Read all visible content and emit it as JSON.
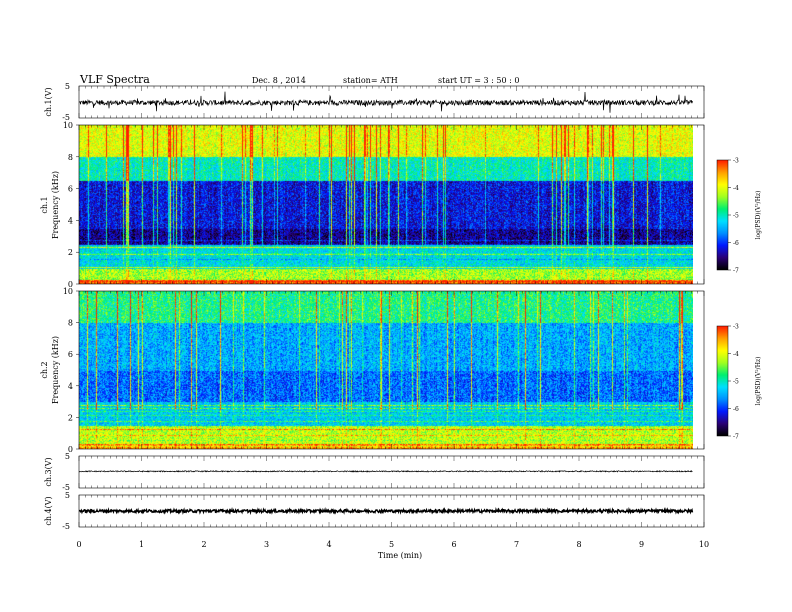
{
  "header": {
    "title": "VLF  Spectra",
    "date": "Dec. 8  , 2014",
    "station": "station= ATH",
    "start": "start  UT  =   3  : 50 : 0"
  },
  "colors": {
    "waveform": "#000000",
    "colormap": [
      "#000000",
      "#2a0078",
      "#0018ff",
      "#0090ff",
      "#00e0ff",
      "#00f070",
      "#a0ff20",
      "#ffff00",
      "#ffa000",
      "#ff2000",
      "#ffffff"
    ]
  },
  "chart_data": [
    {
      "type": "line",
      "panel": "ch1-waveform",
      "ylabel": "ch.1(V)",
      "ylim": [
        -5,
        5
      ],
      "yticks": [
        "5",
        "-5"
      ],
      "xlim": [
        0,
        10
      ],
      "x_extent": [
        0,
        9.82
      ],
      "level_v": -0.2
    },
    {
      "type": "heatmap",
      "panel": "ch1-spectrogram",
      "ylabel_top": "ch.1",
      "ylabel": "Frequency  (kHz)",
      "ylim": [
        0,
        10
      ],
      "yticks": [
        "0",
        "2",
        "4",
        "6",
        "8",
        "10"
      ],
      "xlim": [
        0,
        10
      ],
      "x_extent": [
        0,
        9.82
      ],
      "colorbar": {
        "label": "log(PSD)(V²/Hz)",
        "range": [
          -7,
          -3
        ],
        "ticks": [
          "-3",
          "-4",
          "-5",
          "-6",
          "-7"
        ]
      },
      "band_levels_logpsd": [
        {
          "f": [
            0,
            0.3
          ],
          "v": -3.2
        },
        {
          "f": [
            0.3,
            1
          ],
          "v": -4.3
        },
        {
          "f": [
            1,
            2.5
          ],
          "v": -5.2
        },
        {
          "f": [
            2.5,
            3.5
          ],
          "v": -6.5
        },
        {
          "f": [
            3.5,
            6.5
          ],
          "v": -6.2
        },
        {
          "f": [
            6.5,
            8
          ],
          "v": -5.0
        },
        {
          "f": [
            8,
            10
          ],
          "v": -4.0
        }
      ]
    },
    {
      "type": "heatmap",
      "panel": "ch2-spectrogram",
      "ylabel_top": "ch.2",
      "ylabel": "Frequency  (kHz)",
      "ylim": [
        0,
        10
      ],
      "yticks": [
        "0",
        "2",
        "4",
        "6",
        "8",
        "10"
      ],
      "xlim": [
        0,
        10
      ],
      "x_extent": [
        0,
        9.82
      ],
      "colorbar": {
        "label": "log(PSD)(V²/Hz)",
        "range": [
          -7,
          -3
        ],
        "ticks": [
          "-3",
          "-4",
          "-5",
          "-6",
          "-7"
        ]
      },
      "band_levels_logpsd": [
        {
          "f": [
            0,
            0.3
          ],
          "v": -3.5
        },
        {
          "f": [
            0.3,
            1.5
          ],
          "v": -4.2
        },
        {
          "f": [
            1.5,
            3
          ],
          "v": -5.3
        },
        {
          "f": [
            3,
            5
          ],
          "v": -5.8
        },
        {
          "f": [
            5,
            8
          ],
          "v": -5.5
        },
        {
          "f": [
            8,
            10
          ],
          "v": -4.8
        }
      ]
    },
    {
      "type": "line",
      "panel": "ch3-waveform",
      "ylabel": "ch.3(V)",
      "ylim": [
        -5,
        5
      ],
      "yticks": [
        "5",
        "-5"
      ],
      "xlim": [
        0,
        10
      ],
      "x_extent": [
        0,
        9.82
      ],
      "level_v": 0.2
    },
    {
      "type": "line",
      "panel": "ch4-waveform",
      "ylabel": "ch.4(V)",
      "ylim": [
        -5,
        5
      ],
      "yticks": [
        "5",
        "-5"
      ],
      "xlim": [
        0,
        10
      ],
      "x_extent": [
        0,
        9.82
      ],
      "level_v": 0.0
    }
  ],
  "x_axis": {
    "label": "Time  (min)",
    "ticks": [
      "0",
      "1",
      "2",
      "3",
      "4",
      "5",
      "6",
      "7",
      "8",
      "9",
      "10"
    ]
  }
}
